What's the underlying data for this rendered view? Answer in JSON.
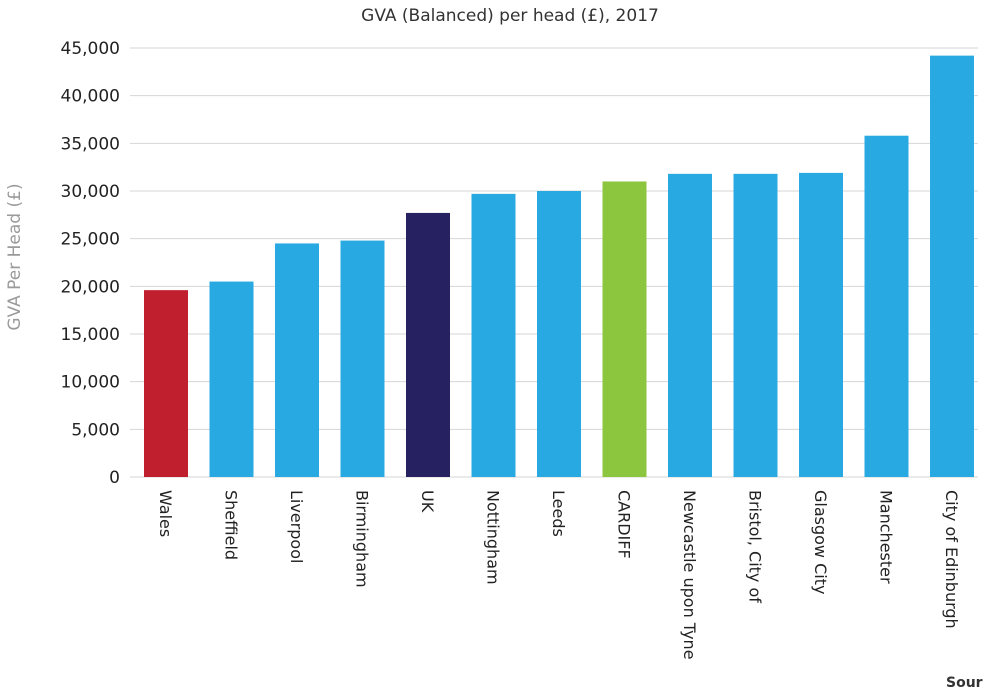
{
  "chart_data": {
    "type": "bar",
    "title": "GVA (Balanced) per head (£), 2017",
    "xlabel": "",
    "ylabel": "GVA Per Head (£)",
    "ylim": [
      0,
      45000
    ],
    "yticks": [
      "0",
      "5,000",
      "10,000",
      "15,000",
      "20,000",
      "25,000",
      "30,000",
      "35,000",
      "40,000",
      "45,000"
    ],
    "grid": true,
    "legend": "none",
    "categories": [
      "Wales",
      "Sheffield",
      "Liverpool",
      "Birmingham",
      "UK",
      "Nottingham",
      "Leeds",
      "CARDIFF",
      "Newcastle upon Tyne",
      "Bristol, City of",
      "Glasgow City",
      "Manchester",
      "City of Edinburgh"
    ],
    "values": [
      19600,
      20500,
      24500,
      24800,
      27700,
      29700,
      30000,
      31000,
      31800,
      31800,
      31900,
      35800,
      44200
    ],
    "colors": [
      "#c0202e",
      "#29a9e1",
      "#29a9e1",
      "#29a9e1",
      "#262262",
      "#29a9e1",
      "#29a9e1",
      "#8cc63f",
      "#29a9e1",
      "#29a9e1",
      "#29a9e1",
      "#29a9e1",
      "#29a9e1"
    ],
    "gridline_color": "#d6d6d6"
  },
  "source_label": "Sour"
}
